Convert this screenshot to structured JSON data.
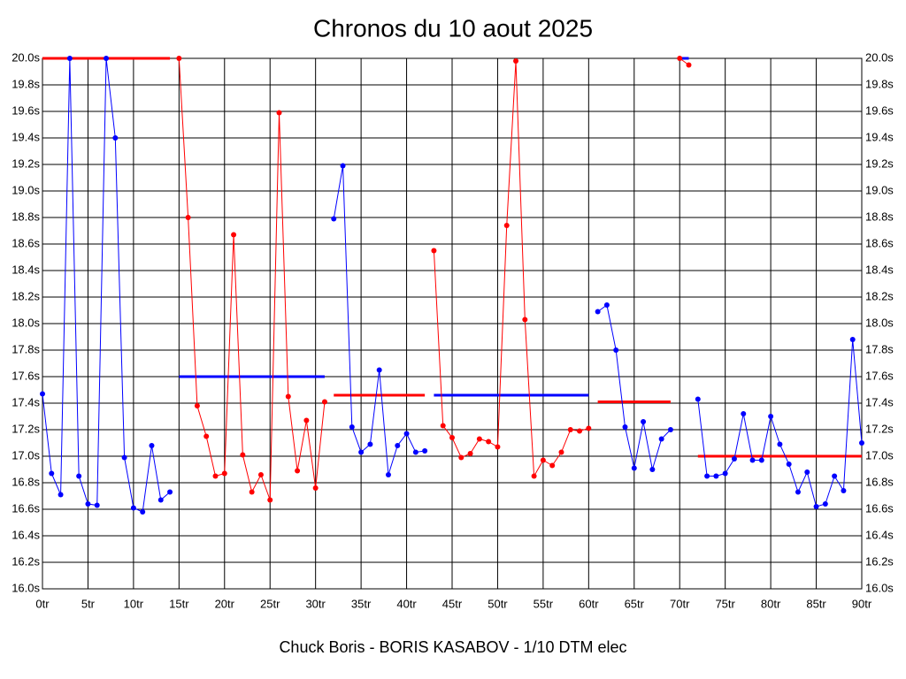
{
  "chart_data": {
    "type": "line",
    "title": "Chronos du 10 aout 2025",
    "footer": "Chuck Boris - BORIS KASABOV - 1/10 DTM elec",
    "grid": true,
    "xlim": [
      0,
      90
    ],
    "ylim": [
      16,
      20
    ],
    "xticks": [
      {
        "value": 0,
        "label": "0tr"
      },
      {
        "value": 5,
        "label": "5tr"
      },
      {
        "value": 10,
        "label": "10tr"
      },
      {
        "value": 15,
        "label": "15tr"
      },
      {
        "value": 20,
        "label": "20tr"
      },
      {
        "value": 25,
        "label": "25tr"
      },
      {
        "value": 30,
        "label": "30tr"
      },
      {
        "value": 35,
        "label": "35tr"
      },
      {
        "value": 40,
        "label": "40tr"
      },
      {
        "value": 45,
        "label": "45tr"
      },
      {
        "value": 50,
        "label": "50tr"
      },
      {
        "value": 55,
        "label": "55tr"
      },
      {
        "value": 60,
        "label": "60tr"
      },
      {
        "value": 65,
        "label": "65tr"
      },
      {
        "value": 70,
        "label": "70tr"
      },
      {
        "value": 75,
        "label": "75tr"
      },
      {
        "value": 80,
        "label": "80tr"
      },
      {
        "value": 85,
        "label": "85tr"
      },
      {
        "value": 90,
        "label": "90tr"
      }
    ],
    "yticks": [
      {
        "value": 16,
        "label": "16.0s"
      },
      {
        "value": 16.2,
        "label": "16.2s"
      },
      {
        "value": 16.4,
        "label": "16.4s"
      },
      {
        "value": 16.6,
        "label": "16.6s"
      },
      {
        "value": 16.8,
        "label": "16.8s"
      },
      {
        "value": 17,
        "label": "17.0s"
      },
      {
        "value": 17.2,
        "label": "17.2s"
      },
      {
        "value": 17.4,
        "label": "17.4s"
      },
      {
        "value": 17.6,
        "label": "17.6s"
      },
      {
        "value": 17.8,
        "label": "17.8s"
      },
      {
        "value": 18,
        "label": "18.0s"
      },
      {
        "value": 18.2,
        "label": "18.2s"
      },
      {
        "value": 18.4,
        "label": "18.4s"
      },
      {
        "value": 18.6,
        "label": "18.6s"
      },
      {
        "value": 18.8,
        "label": "18.8s"
      },
      {
        "value": 19,
        "label": "19.0s"
      },
      {
        "value": 19.2,
        "label": "19.2s"
      },
      {
        "value": 19.4,
        "label": "19.4s"
      },
      {
        "value": 19.6,
        "label": "19.6s"
      },
      {
        "value": 19.8,
        "label": "19.8s"
      },
      {
        "value": 20,
        "label": "20.0s"
      }
    ],
    "series": [
      {
        "color": "#0000ff",
        "x": [
          0,
          1,
          2,
          3,
          4,
          5,
          6,
          7,
          8,
          9,
          10,
          11,
          12,
          13,
          14
        ],
        "values": [
          17.47,
          16.87,
          16.71,
          20.0,
          16.85,
          16.64,
          16.63,
          20.0,
          19.4,
          16.99,
          16.61,
          16.58,
          17.08,
          16.67,
          16.73
        ]
      },
      {
        "color": "#ff0000",
        "x": [
          15,
          16,
          17,
          18,
          19,
          20,
          21,
          22,
          23,
          24,
          25,
          26,
          27,
          28,
          29,
          30,
          31
        ],
        "values": [
          20.0,
          18.8,
          17.38,
          17.15,
          16.85,
          16.87,
          18.67,
          17.01,
          16.73,
          16.86,
          16.67,
          19.59,
          17.45,
          16.89,
          17.27,
          16.76,
          17.41
        ]
      },
      {
        "color": "#0000ff",
        "x": [
          32,
          33,
          34,
          35,
          36,
          37,
          38,
          39,
          40,
          41,
          42
        ],
        "values": [
          18.79,
          19.19,
          17.22,
          17.03,
          17.09,
          17.65,
          16.86,
          17.08,
          17.17,
          17.03,
          17.04
        ]
      },
      {
        "color": "#ff0000",
        "x": [
          43,
          44,
          45,
          46,
          47,
          48,
          49,
          50,
          51,
          52,
          53,
          54,
          55,
          56,
          57,
          58,
          59,
          60
        ],
        "values": [
          18.55,
          17.23,
          17.14,
          16.99,
          17.02,
          17.13,
          17.11,
          17.07,
          18.74,
          19.98,
          18.03,
          16.85,
          16.97,
          16.93,
          17.03,
          17.2,
          17.19,
          17.21
        ]
      },
      {
        "color": "#0000ff",
        "x": [
          61,
          62,
          63,
          64,
          65,
          66,
          67,
          68,
          69
        ],
        "values": [
          18.09,
          18.14,
          17.8,
          17.22,
          16.91,
          17.26,
          16.9,
          17.13,
          17.2
        ]
      },
      {
        "color": "#ff0000",
        "x": [
          70,
          71
        ],
        "values": [
          20.0,
          19.95
        ]
      },
      {
        "color": "#0000ff",
        "x": [
          72,
          73,
          74,
          75,
          76,
          77,
          78,
          79,
          80,
          81,
          82,
          83,
          84,
          85,
          86,
          87,
          88,
          89,
          90
        ],
        "values": [
          17.43,
          16.85,
          16.85,
          16.87,
          16.98,
          17.32,
          16.97,
          16.97,
          17.3,
          17.09,
          16.94,
          16.73,
          16.88,
          16.62,
          16.64,
          16.85,
          16.74,
          17.88,
          17.1
        ]
      }
    ],
    "averages": [
      {
        "color": "#ff0000",
        "x": [
          0,
          14
        ],
        "value": 20.0
      },
      {
        "color": "#0000ff",
        "x": [
          15,
          31
        ],
        "value": 17.6
      },
      {
        "color": "#ff0000",
        "x": [
          32,
          42
        ],
        "value": 17.46
      },
      {
        "color": "#0000ff",
        "x": [
          43,
          60
        ],
        "value": 17.46
      },
      {
        "color": "#ff0000",
        "x": [
          61,
          69
        ],
        "value": 17.41
      },
      {
        "color": "#0000ff",
        "x": [
          70,
          71
        ],
        "value": 20.0
      },
      {
        "color": "#ff0000",
        "x": [
          72,
          90
        ],
        "value": 17.0
      }
    ]
  }
}
